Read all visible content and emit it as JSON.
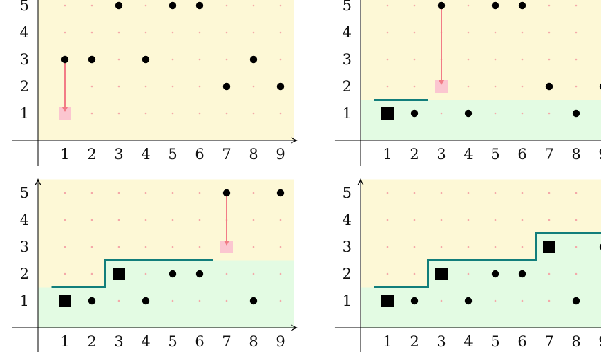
{
  "x_ticks": [
    "1",
    "2",
    "3",
    "4",
    "5",
    "6",
    "7",
    "8",
    "9"
  ],
  "y_ticks": [
    "1",
    "2",
    "3",
    "4",
    "5"
  ],
  "colors": {
    "upper_region": "#fdf8d6",
    "lower_region": "#e3fbe3",
    "grid_dot": "#f4a9a9",
    "point": "#000000",
    "arrow": "#f27c86",
    "target_square": "#fbc6d0",
    "staircase": "#127e7b",
    "axis": "#000000"
  },
  "panels": [
    {
      "id": "panel-1",
      "points": [
        [
          1,
          3
        ],
        [
          2,
          3
        ],
        [
          3,
          5
        ],
        [
          4,
          3
        ],
        [
          5,
          5
        ],
        [
          6,
          5
        ],
        [
          7,
          2
        ],
        [
          8,
          3
        ],
        [
          9,
          2
        ]
      ],
      "squares": [],
      "staircase": [],
      "arrow": {
        "from": [
          1,
          3
        ],
        "to": [
          1,
          1
        ]
      },
      "boundary_steps": []
    },
    {
      "id": "panel-2",
      "points": [
        [
          2,
          1
        ],
        [
          3,
          5
        ],
        [
          4,
          1
        ],
        [
          5,
          5
        ],
        [
          6,
          5
        ],
        [
          7,
          2
        ],
        [
          8,
          1
        ],
        [
          9,
          2
        ]
      ],
      "squares": [
        [
          1,
          1
        ]
      ],
      "staircase": [
        [
          0.5,
          1.5
        ],
        [
          2.5,
          1.5
        ]
      ],
      "arrow": {
        "from": [
          3,
          5
        ],
        "to": [
          3,
          2
        ]
      },
      "boundary_steps": [
        [
          0.5,
          1.5
        ],
        [
          9.5,
          1.5
        ]
      ]
    },
    {
      "id": "panel-3",
      "points": [
        [
          2,
          1
        ],
        [
          4,
          1
        ],
        [
          5,
          2
        ],
        [
          6,
          2
        ],
        [
          7,
          5
        ],
        [
          8,
          1
        ],
        [
          9,
          5
        ]
      ],
      "squares": [
        [
          1,
          1
        ],
        [
          3,
          2
        ]
      ],
      "staircase": [
        [
          0.5,
          1.5
        ],
        [
          2.5,
          1.5
        ],
        [
          2.5,
          2.5
        ],
        [
          6.5,
          2.5
        ]
      ],
      "arrow": {
        "from": [
          7,
          5
        ],
        "to": [
          7,
          3
        ]
      },
      "boundary_steps": [
        [
          0.5,
          1.5
        ],
        [
          2.5,
          1.5
        ],
        [
          2.5,
          2.5
        ],
        [
          9.5,
          2.5
        ]
      ]
    },
    {
      "id": "panel-4",
      "points": [
        [
          2,
          1
        ],
        [
          4,
          1
        ],
        [
          5,
          2
        ],
        [
          6,
          2
        ],
        [
          8,
          1
        ],
        [
          9,
          3
        ]
      ],
      "squares": [
        [
          1,
          1
        ],
        [
          3,
          2
        ],
        [
          7,
          3
        ]
      ],
      "staircase": [
        [
          0.5,
          1.5
        ],
        [
          2.5,
          1.5
        ],
        [
          2.5,
          2.5
        ],
        [
          6.5,
          2.5
        ],
        [
          6.5,
          3.5
        ],
        [
          9.5,
          3.5
        ]
      ],
      "arrow": null,
      "boundary_steps": [
        [
          0.5,
          1.5
        ],
        [
          2.5,
          1.5
        ],
        [
          2.5,
          2.5
        ],
        [
          6.5,
          2.5
        ],
        [
          6.5,
          3.5
        ],
        [
          9.5,
          3.5
        ]
      ]
    }
  ]
}
